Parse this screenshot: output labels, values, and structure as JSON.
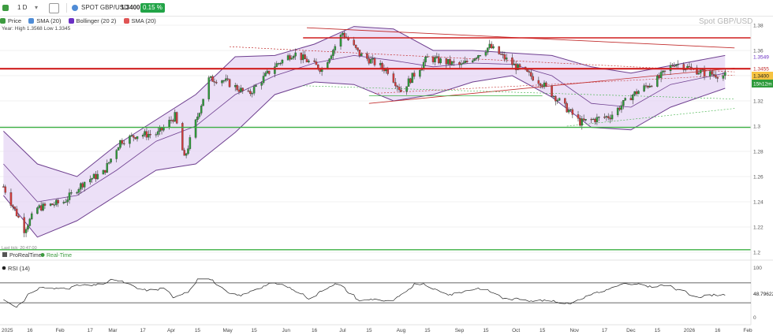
{
  "toolbar": {
    "interval": "1 D",
    "instrument": "SPOT GBP/USD",
    "price": "1.3400",
    "change": "0.15 %"
  },
  "legend": [
    {
      "label": "Price",
      "color": "#3d9b40"
    },
    {
      "label": "SMA (20)",
      "color": "#4f8cd6"
    },
    {
      "label": "Bollinger (20 2)",
      "color": "#6a2fc4"
    },
    {
      "label": "SMA (20)",
      "color": "#e05555"
    }
  ],
  "year_info": "Year: High 1.3568 Low 1.3345",
  "watermark": "Spot GBP/USD",
  "last_tick": "Last tick: 20:47:00",
  "price_labels": {
    "bb_upper": "1.3549",
    "level": "1.3455",
    "last": "1.3400",
    "countdown": "15h12m"
  },
  "footer": {
    "source": "ProRealTime",
    "realtime": "Real-Time"
  },
  "rsi": {
    "label": "RSI (14)",
    "value": "48.79622",
    "scale": [
      "100",
      "0"
    ]
  },
  "chart_data": {
    "type": "line",
    "title": "Spot GBP/USD",
    "ylim": [
      1.2,
      1.38
    ],
    "y_ticks": [
      "1.38",
      "1.36",
      "1.34",
      "1.32",
      "1.3",
      "1.28",
      "1.26",
      "1.24",
      "1.22",
      "1.2"
    ],
    "x_ticks": [
      "2025",
      "16",
      "Feb",
      "17",
      "Mar",
      "17",
      "Apr",
      "15",
      "May",
      "15",
      "Jun",
      "16",
      "Jul",
      "15",
      "Aug",
      "15",
      "Sep",
      "15",
      "Oct",
      "15",
      "Nov",
      "17",
      "Dec",
      "15",
      "2026",
      "16",
      "Feb"
    ],
    "x_tick_dates": [
      "2025-01-01",
      "2025-01-16",
      "2025-02-01",
      "2025-02-17",
      "2025-03-01",
      "2025-03-17",
      "2025-04-01",
      "2025-04-15",
      "2025-05-01",
      "2025-05-15",
      "2025-06-01",
      "2025-06-16",
      "2025-07-01",
      "2025-07-15",
      "2025-08-01",
      "2025-08-15",
      "2025-09-01",
      "2025-09-15",
      "2025-10-01",
      "2025-10-15",
      "2025-11-01",
      "2025-11-17",
      "2025-12-01",
      "2025-12-15",
      "2026-01-01",
      "2026-01-16",
      "2026-02-01"
    ],
    "series": [
      {
        "name": "Price",
        "x": [
          "2025-01-02",
          "2025-01-13",
          "2025-01-20",
          "2025-02-03",
          "2025-02-14",
          "2025-02-24",
          "2025-03-05",
          "2025-03-14",
          "2025-03-25",
          "2025-04-03",
          "2025-04-08",
          "2025-04-21",
          "2025-04-28",
          "2025-05-12",
          "2025-05-26",
          "2025-06-05",
          "2025-06-20",
          "2025-07-01",
          "2025-07-10",
          "2025-07-25",
          "2025-08-01",
          "2025-08-15",
          "2025-09-02",
          "2025-09-17",
          "2025-10-01",
          "2025-10-14",
          "2025-11-04",
          "2025-11-20",
          "2025-12-02",
          "2025-12-15",
          "2025-12-24",
          "2026-01-09",
          "2026-01-20"
        ],
        "y": [
          1.252,
          1.218,
          1.235,
          1.24,
          1.256,
          1.263,
          1.288,
          1.293,
          1.294,
          1.308,
          1.274,
          1.337,
          1.337,
          1.325,
          1.348,
          1.358,
          1.345,
          1.374,
          1.357,
          1.344,
          1.328,
          1.354,
          1.348,
          1.363,
          1.347,
          1.335,
          1.303,
          1.308,
          1.325,
          1.337,
          1.35,
          1.342,
          1.34
        ]
      },
      {
        "name": "SMA (20)",
        "x": [
          "2025-01-02",
          "2025-01-20",
          "2025-02-10",
          "2025-03-03",
          "2025-03-24",
          "2025-04-14",
          "2025-05-05",
          "2025-05-26",
          "2025-06-16",
          "2025-07-07",
          "2025-07-28",
          "2025-08-18",
          "2025-09-08",
          "2025-09-29",
          "2025-10-20",
          "2025-11-10",
          "2025-12-01",
          "2025-12-22",
          "2026-01-20"
        ],
        "y": [
          1.27,
          1.24,
          1.245,
          1.265,
          1.288,
          1.3,
          1.325,
          1.34,
          1.35,
          1.356,
          1.352,
          1.347,
          1.35,
          1.349,
          1.34,
          1.318,
          1.315,
          1.333,
          1.342
        ]
      },
      {
        "name": "Bollinger (20 2)",
        "upper": [
          1.296,
          1.27,
          1.26,
          1.285,
          1.305,
          1.325,
          1.355,
          1.356,
          1.365,
          1.379,
          1.377,
          1.36,
          1.36,
          1.358,
          1.356,
          1.347,
          1.342,
          1.348,
          1.356
        ],
        "lower": [
          1.245,
          1.212,
          1.225,
          1.245,
          1.265,
          1.27,
          1.295,
          1.325,
          1.335,
          1.333,
          1.32,
          1.325,
          1.335,
          1.34,
          1.323,
          1.299,
          1.297,
          1.315,
          1.33
        ]
      }
    ],
    "levels": [
      1.37,
      1.3455,
      1.299,
      1.202
    ],
    "level_names": [
      "resistance",
      "resistance",
      "support",
      "support"
    ]
  }
}
